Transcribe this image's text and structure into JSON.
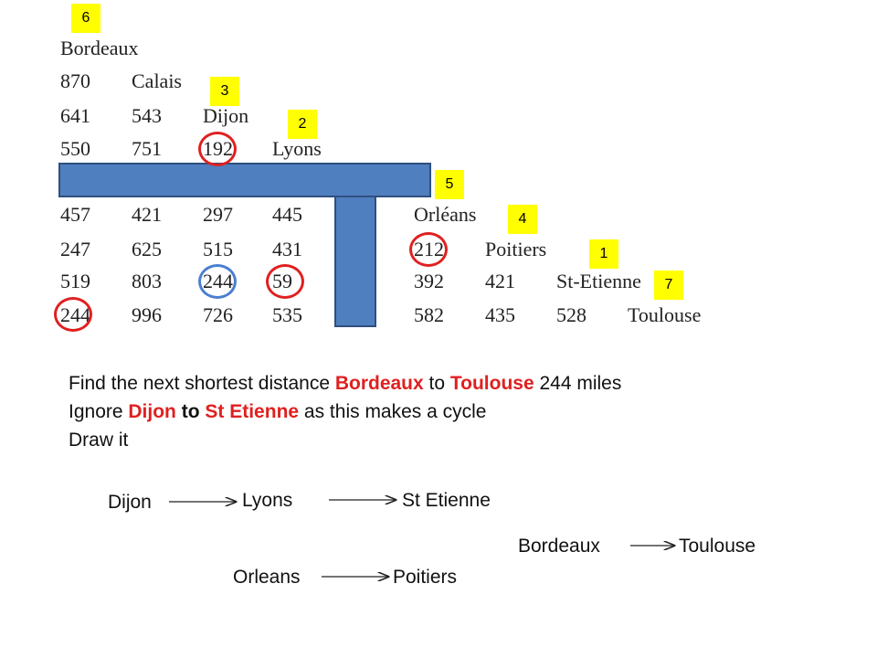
{
  "tags": {
    "t6": "6",
    "t3": "3",
    "t2": "2",
    "t5": "5",
    "t4": "4",
    "t1": "1",
    "t7": "7"
  },
  "table": {
    "cities": [
      "Bordeaux",
      "Calais",
      "Dijon",
      "Lyons",
      "Orléans",
      "Poitiers",
      "St-Etienne",
      "Toulouse"
    ],
    "rows": [
      [
        "870"
      ],
      [
        "641",
        "543"
      ],
      [
        "550",
        "751",
        "192"
      ],
      [
        "457",
        "421",
        "297",
        "445"
      ],
      [
        "247",
        "625",
        "515",
        "431",
        "212"
      ],
      [
        "519",
        "803",
        "244",
        "59",
        "392",
        "421"
      ],
      [
        "244",
        "996",
        "726",
        "535",
        "582",
        "435",
        "528"
      ]
    ]
  },
  "text": {
    "line1_a": "Find the next shortest distance ",
    "line1_b": "Bordeaux",
    "line1_c": " to ",
    "line1_d": "Toulouse",
    "line1_e": " 244 miles",
    "line2_a": "Ignore ",
    "line2_b": "Dijon",
    "line2_c": " to ",
    "line2_d": "St Etienne",
    "line2_e": " as this makes a cycle",
    "line3": "Draw it"
  },
  "diagram": {
    "dijon": "Dijon",
    "lyons": "Lyons",
    "st_etienne": "St Etienne",
    "bordeaux": "Bordeaux",
    "toulouse": "Toulouse",
    "orleans": "Orleans",
    "poitiers": "Poitiers"
  },
  "colors": {
    "tag": "#ffff00",
    "cover_bar": "#4f7fbf",
    "highlight_red": "#e02020",
    "highlight_blue": "#4a7fd0"
  }
}
